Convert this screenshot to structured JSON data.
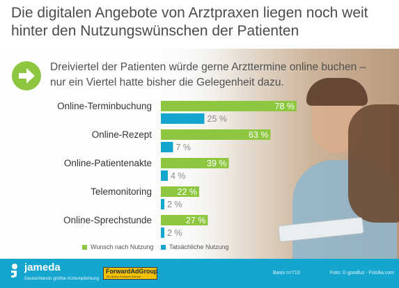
{
  "headline": "Die digitalen Angebote von Arztpraxen liegen noch weit hinter den Nutzungswünschen der Patienten",
  "subtitle": "Dreiviertel der Patienten würde gerne Arzttermine online buchen – nur ein Viertel hatte bisher die Gelegenheit dazu.",
  "chart_data": {
    "type": "bar",
    "orientation": "horizontal",
    "categories": [
      "Online-Terminbuchung",
      "Online-Rezept",
      "Online-Patientenakte",
      "Telemonitoring",
      "Online-Sprechstunde"
    ],
    "series": [
      {
        "name": "Wunsch nach Nutzung",
        "values": [
          78,
          63,
          39,
          22,
          27
        ],
        "labels": [
          "78 %",
          "63 %",
          "39 %",
          "22 %",
          "27 %"
        ],
        "color": "#8dc63f"
      },
      {
        "name": "Tatsächliche Nutzung",
        "values": [
          25,
          7,
          4,
          2,
          2
        ],
        "labels": [
          "25 %",
          "7 %",
          "4 %",
          "2 %",
          "2 %"
        ],
        "color": "#14a6cf"
      }
    ],
    "unit": "%",
    "xlim": [
      0,
      100
    ],
    "legend_position": "bottom"
  },
  "legend": {
    "desire": "Wunsch nach Nutzung",
    "actual": "Tatsächliche Nutzung"
  },
  "footer": {
    "brand": "jameda",
    "tagline": "Deutschlands größte Arztempfehlung",
    "partner": "ForwardAdGroup",
    "partner_sub": "Ein Burda Premium Service",
    "basis": "Basis n=710",
    "credit": "Foto: © goodluz - Fotolia.com"
  },
  "colors": {
    "green": "#8dc63f",
    "blue": "#14a6cf",
    "footer": "#14a6cf"
  },
  "icons": {
    "arrow": "arrow-right-icon",
    "logo": "jameda-logo-icon"
  }
}
